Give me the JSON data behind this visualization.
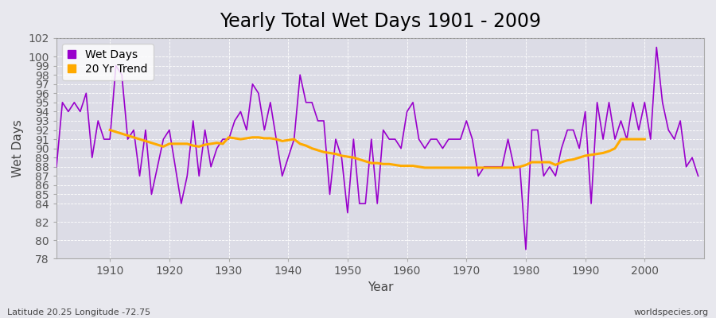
{
  "title": "Yearly Total Wet Days 1901 - 2009",
  "xlabel": "Year",
  "ylabel": "Wet Days",
  "subtitle_lat_lon": "Latitude 20.25 Longitude -72.75",
  "credit": "worldspecies.org",
  "years": [
    1901,
    1902,
    1903,
    1904,
    1905,
    1906,
    1907,
    1908,
    1909,
    1910,
    1911,
    1912,
    1913,
    1914,
    1915,
    1916,
    1917,
    1918,
    1919,
    1920,
    1921,
    1922,
    1923,
    1924,
    1925,
    1926,
    1927,
    1928,
    1929,
    1930,
    1931,
    1932,
    1933,
    1934,
    1935,
    1936,
    1937,
    1938,
    1939,
    1940,
    1941,
    1942,
    1943,
    1944,
    1945,
    1946,
    1947,
    1948,
    1949,
    1950,
    1951,
    1952,
    1953,
    1954,
    1955,
    1956,
    1957,
    1958,
    1959,
    1960,
    1961,
    1962,
    1963,
    1964,
    1965,
    1966,
    1967,
    1968,
    1969,
    1970,
    1971,
    1972,
    1973,
    1974,
    1975,
    1976,
    1977,
    1978,
    1979,
    1980,
    1981,
    1982,
    1983,
    1984,
    1985,
    1986,
    1987,
    1988,
    1989,
    1990,
    1991,
    1992,
    1993,
    1994,
    1995,
    1996,
    1997,
    1998,
    1999,
    2000,
    2001,
    2002,
    2003,
    2004,
    2005,
    2006,
    2007,
    2008,
    2009
  ],
  "wet_days": [
    88,
    95,
    94,
    95,
    94,
    96,
    89,
    93,
    91,
    91,
    99,
    98,
    91,
    92,
    87,
    92,
    85,
    88,
    91,
    92,
    88,
    84,
    87,
    93,
    87,
    92,
    88,
    90,
    91,
    91,
    93,
    94,
    92,
    97,
    96,
    92,
    95,
    91,
    87,
    89,
    91,
    98,
    95,
    95,
    93,
    93,
    85,
    91,
    89,
    83,
    91,
    84,
    84,
    91,
    84,
    92,
    91,
    91,
    90,
    94,
    95,
    91,
    90,
    91,
    91,
    90,
    91,
    91,
    91,
    93,
    91,
    87,
    88,
    88,
    88,
    88,
    91,
    88,
    88,
    79,
    92,
    92,
    87,
    88,
    87,
    90,
    92,
    92,
    90,
    94,
    84,
    95,
    91,
    95,
    91,
    93,
    91,
    95,
    92,
    95,
    91,
    101,
    95,
    92,
    91,
    93,
    88,
    89,
    87
  ],
  "trend_years": [
    1910,
    1911,
    1912,
    1913,
    1914,
    1915,
    1916,
    1917,
    1918,
    1919,
    1920,
    1921,
    1922,
    1923,
    1924,
    1925,
    1926,
    1927,
    1928,
    1929,
    1930,
    1931,
    1932,
    1933,
    1934,
    1935,
    1936,
    1937,
    1938,
    1939,
    1940,
    1941,
    1942,
    1943,
    1944,
    1945,
    1946,
    1947,
    1948,
    1949,
    1950,
    1951,
    1952,
    1953,
    1954,
    1955,
    1956,
    1957,
    1958,
    1959,
    1960,
    1961,
    1962,
    1963,
    1964,
    1965,
    1966,
    1967,
    1968,
    1969,
    1970,
    1971,
    1972,
    1973,
    1974,
    1975,
    1976,
    1977,
    1978,
    1979,
    1980,
    1981,
    1982,
    1983,
    1984,
    1985,
    1986,
    1987,
    1988,
    1989,
    1990,
    1991,
    1992,
    1993,
    1994,
    1995,
    1996,
    1997,
    1998,
    1999,
    2000
  ],
  "trend_values": [
    92.0,
    91.8,
    91.6,
    91.4,
    91.2,
    91.0,
    90.8,
    90.6,
    90.4,
    90.2,
    90.5,
    90.5,
    90.5,
    90.5,
    90.3,
    90.2,
    90.4,
    90.5,
    90.6,
    90.5,
    91.2,
    91.1,
    91.0,
    91.1,
    91.2,
    91.2,
    91.1,
    91.1,
    91.0,
    90.8,
    90.9,
    91.0,
    90.5,
    90.3,
    90.0,
    89.8,
    89.6,
    89.5,
    89.4,
    89.2,
    89.1,
    89.0,
    88.8,
    88.6,
    88.4,
    88.4,
    88.3,
    88.3,
    88.2,
    88.1,
    88.1,
    88.1,
    88.0,
    87.9,
    87.9,
    87.9,
    87.9,
    87.9,
    87.9,
    87.9,
    87.9,
    87.9,
    87.9,
    87.9,
    87.9,
    87.9,
    87.9,
    87.9,
    87.9,
    88.0,
    88.2,
    88.5,
    88.5,
    88.5,
    88.5,
    88.2,
    88.5,
    88.7,
    88.8,
    89.0,
    89.2,
    89.3,
    89.4,
    89.5,
    89.7,
    90.0,
    91.0,
    91.0,
    91.0,
    91.0,
    91.0
  ],
  "wet_days_color": "#9900cc",
  "trend_color": "#ffaa00",
  "bg_color": "#e8e8ee",
  "plot_bg_color": "#dcdce6",
  "ylim": [
    78,
    102
  ],
  "yticks": [
    78,
    80,
    82,
    84,
    85,
    86,
    87,
    88,
    89,
    90,
    91,
    92,
    93,
    94,
    95,
    96,
    97,
    98,
    99,
    100,
    102
  ],
  "xtick_positions": [
    1910,
    1920,
    1930,
    1940,
    1950,
    1960,
    1970,
    1980,
    1990,
    2000
  ],
  "xlim": [
    1901,
    2010
  ],
  "title_fontsize": 17,
  "axis_label_fontsize": 11,
  "tick_fontsize": 10,
  "legend_fontsize": 10,
  "dotted_line_y": 102
}
